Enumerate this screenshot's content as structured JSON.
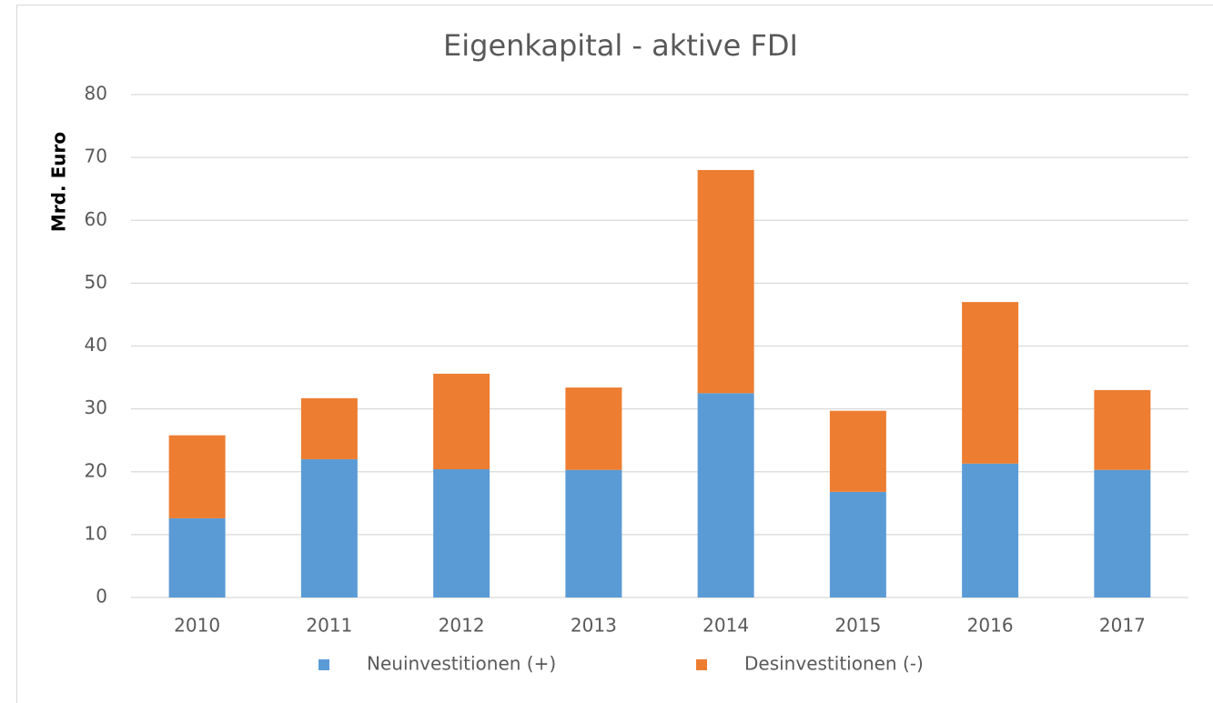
{
  "chart_data": {
    "type": "bar",
    "stacked": true,
    "title": "Eigenkapital - aktive FDI",
    "y_label": "Mrd. Euro",
    "categories": [
      "2010",
      "2011",
      "2012",
      "2013",
      "2014",
      "2015",
      "2016",
      "2017"
    ],
    "series": [
      {
        "name": "Neuinvestitionen (+)",
        "color": "#5b9bd5",
        "values": [
          12.6,
          22.0,
          20.4,
          20.3,
          32.5,
          16.8,
          21.3,
          20.3
        ]
      },
      {
        "name": "Desinvestitionen (-)",
        "color": "#ed7d31",
        "values": [
          13.2,
          9.7,
          15.2,
          13.1,
          35.5,
          12.9,
          25.7,
          12.7
        ]
      }
    ],
    "ylim": [
      0,
      80
    ],
    "yticks": [
      0,
      10,
      20,
      30,
      40,
      50,
      60,
      70,
      80
    ],
    "grid": true,
    "legend": "bottom"
  }
}
